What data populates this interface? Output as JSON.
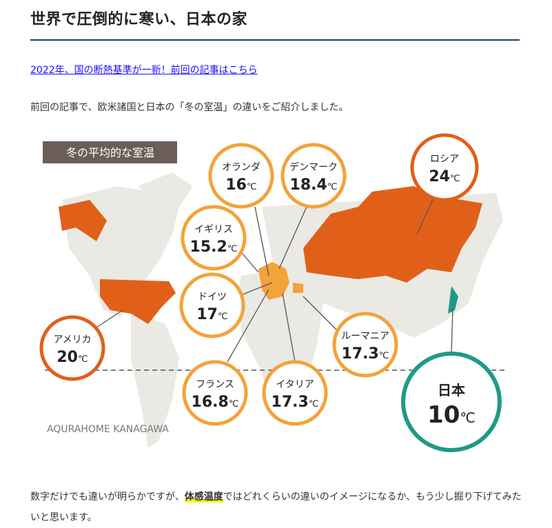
{
  "title": "世界で圧倒的に寒い、日本の家",
  "link": "2022年、国の断熱基準が一新！前回の記事はこちら",
  "intro": "前回の記事で、欧米諸国と日本の「冬の室温」の違いをご紹介しました。",
  "infographic": {
    "heading": "冬の平均的な室温",
    "credit": "AQURAHOME KANAGAWA",
    "unit": "℃",
    "colors": {
      "europe": "#f2a33a",
      "highlight": "#e0601a",
      "japan": "#1f9a87",
      "land": "#ebe9e4"
    },
    "countries": [
      {
        "name": "オランダ",
        "temp": "16"
      },
      {
        "name": "デンマーク",
        "temp": "18.4"
      },
      {
        "name": "ロシア",
        "temp": "24"
      },
      {
        "name": "イギリス",
        "temp": "15.2"
      },
      {
        "name": "ドイツ",
        "temp": "17"
      },
      {
        "name": "アメリカ",
        "temp": "20"
      },
      {
        "name": "ルーマニア",
        "temp": "17.3"
      },
      {
        "name": "フランス",
        "temp": "16.8"
      },
      {
        "name": "イタリア",
        "temp": "17.3"
      },
      {
        "name": "日本",
        "temp": "10"
      }
    ]
  },
  "para": {
    "before": "数字だけでも違いが明らかですが、",
    "highlight": "体感温度",
    "after": "ではどれくらいの違いのイメージになるか、もう少し掘り下げてみたいと思います。"
  }
}
